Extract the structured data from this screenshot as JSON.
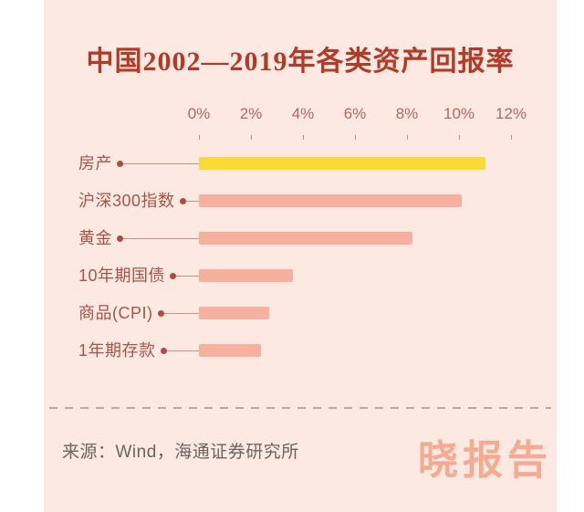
{
  "card": {
    "title": "中国2002—2019年各类资产回报率"
  },
  "chart_data": {
    "type": "bar",
    "orientation": "horizontal",
    "title": "中国2002—2019年各类资产回报率",
    "categories": [
      "房产",
      "沪深300指数",
      "黄金",
      "10年期国债",
      "商品(CPI)",
      "1年期存款"
    ],
    "values": [
      11.0,
      10.1,
      8.2,
      3.6,
      2.7,
      2.4
    ],
    "value_unit": "%",
    "x_ticks": [
      "0%",
      "2%",
      "4%",
      "6%",
      "8%",
      "10%",
      "12%"
    ],
    "xlim": [
      0,
      12
    ],
    "grid": false,
    "legend": "none",
    "highlight_index": 0,
    "colors": {
      "highlight_bar": "#f8dc35",
      "default_bar": "#f5b19e",
      "card_background": "#fce9e1",
      "title_text": "#b43a28",
      "category_text": "#a8534a",
      "axis_text": "#b0695e"
    }
  },
  "footer": {
    "source": "来源：Wind，海通证券研究所",
    "watermark": "晓报告",
    "watermark_color": "#f6aa92"
  }
}
